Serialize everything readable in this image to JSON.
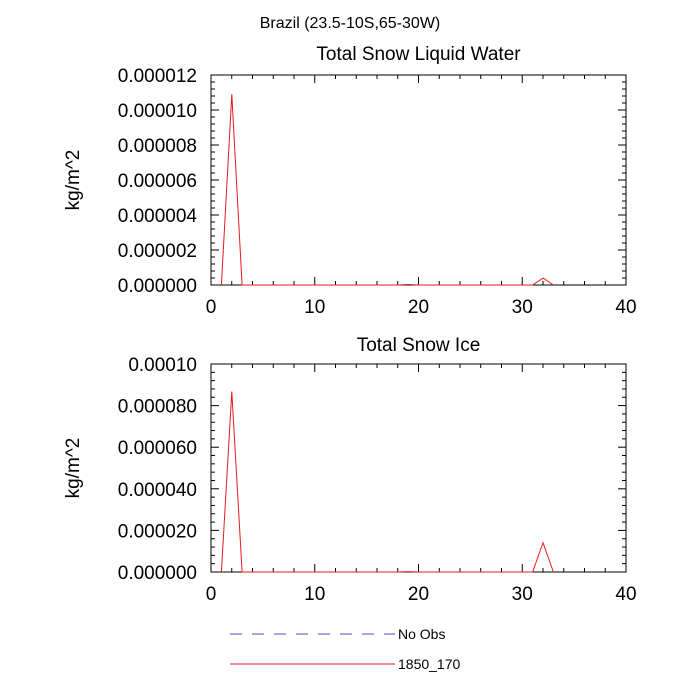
{
  "figure_title": "Brazil (23.5-10S,65-30W)",
  "chart_data": [
    {
      "type": "line",
      "title": "Total Snow Liquid Water",
      "xlabel": "",
      "ylabel": "kg/m^2",
      "xlim": [
        0,
        40
      ],
      "ylim": [
        0,
        1.2e-05
      ],
      "x_ticks": [
        "0",
        "10",
        "20",
        "30",
        "40"
      ],
      "y_ticks": [
        "0.000000",
        "0.000002",
        "0.000004",
        "0.000006",
        "0.000008",
        "0.000010",
        "0.000012"
      ],
      "grid": false,
      "series": [
        {
          "name": "1850_170",
          "color": "#e41a1c",
          "x": [
            1,
            2,
            3,
            18,
            19,
            20,
            31,
            32,
            33
          ],
          "y": [
            0,
            1.09e-05,
            0,
            0,
            3e-08,
            0,
            0,
            4e-07,
            0
          ]
        }
      ]
    },
    {
      "type": "line",
      "title": "Total Snow Ice",
      "xlabel": "",
      "ylabel": "kg/m^2",
      "xlim": [
        0,
        40
      ],
      "ylim": [
        0,
        0.0001
      ],
      "x_ticks": [
        "0",
        "10",
        "20",
        "30",
        "40"
      ],
      "y_ticks": [
        "0.000000",
        "0.000020",
        "0.000040",
        "0.000060",
        "0.000080",
        "0.00010"
      ],
      "grid": false,
      "series": [
        {
          "name": "1850_170",
          "color": "#e41a1c",
          "x": [
            1,
            2,
            3,
            18,
            19,
            20,
            31,
            32,
            33
          ],
          "y": [
            0,
            8.68e-05,
            0,
            0,
            2e-07,
            0,
            0,
            1.41e-05,
            0
          ]
        }
      ]
    }
  ],
  "legend": {
    "position": "bottom-center",
    "items": [
      {
        "label": "No Obs",
        "style": "dashed",
        "color": "#4a4ac0"
      },
      {
        "label": "1850_170",
        "style": "solid",
        "color": "#e41a1c"
      }
    ]
  }
}
